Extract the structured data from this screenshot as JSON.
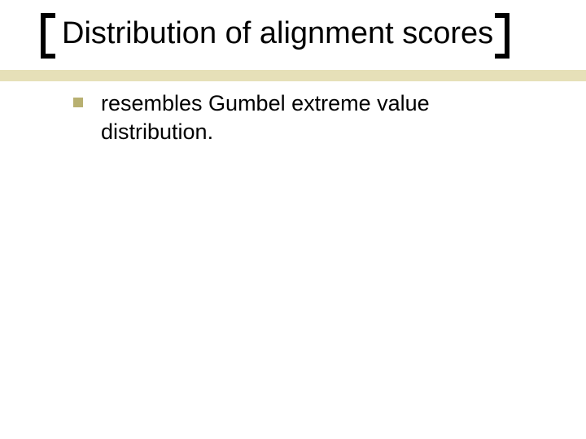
{
  "slide": {
    "title": "Distribution of alignment scores",
    "bullets": [
      {
        "text": "resembles Gumbel extreme value distribution."
      }
    ]
  },
  "style": {
    "background_color": "#ffffff",
    "title_color": "#000000",
    "title_fontsize": 38,
    "body_color": "#000000",
    "body_fontsize": 27,
    "bracket_color": "#000000",
    "bracket_thickness": 6,
    "bullet_marker_color": "#b8b071",
    "accent_stripe_color": "#e6e0b8"
  }
}
